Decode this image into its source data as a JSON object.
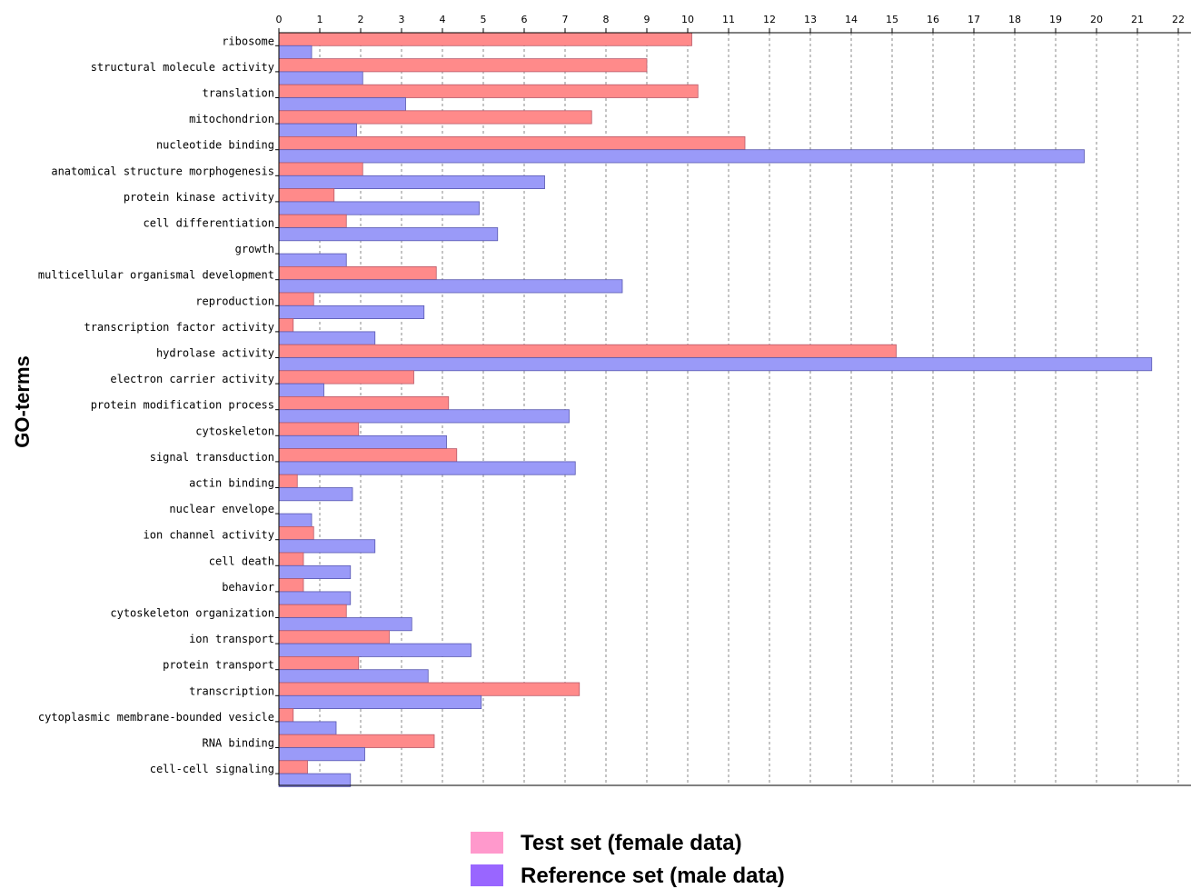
{
  "chart_data": {
    "type": "bar",
    "orientation": "horizontal",
    "ylabel": "GO-terms",
    "xlim": [
      0,
      22
    ],
    "x_ticks": [
      0,
      1,
      2,
      3,
      4,
      5,
      6,
      7,
      8,
      9,
      10,
      11,
      12,
      13,
      14,
      15,
      16,
      17,
      18,
      19,
      20,
      21,
      22
    ],
    "grid": true,
    "legend_position": "bottom",
    "categories": [
      "ribosome",
      "structural molecule activity",
      "translation",
      "mitochondrion",
      "nucleotide binding",
      "anatomical structure morphogenesis",
      "protein kinase activity",
      "cell differentiation",
      "growth",
      "multicellular organismal development",
      "reproduction",
      "transcription factor activity",
      "hydrolase activity",
      "electron carrier activity",
      "protein modification process",
      "cytoskeleton",
      "signal transduction",
      "actin binding",
      "nuclear envelope",
      "ion channel activity",
      "cell death",
      "behavior",
      "cytoskeleton organization",
      "ion transport",
      "protein transport",
      "transcription",
      "cytoplasmic membrane-bounded vesicle",
      "RNA binding",
      "cell-cell signaling"
    ],
    "series": [
      {
        "name": "Test set (female data)",
        "color": "#ff8a8a",
        "values": [
          10.1,
          9.0,
          10.25,
          7.65,
          11.4,
          2.05,
          1.35,
          1.65,
          0.0,
          3.85,
          0.85,
          0.35,
          15.1,
          3.3,
          4.15,
          1.95,
          4.35,
          0.45,
          0.0,
          0.85,
          0.6,
          0.6,
          1.65,
          2.7,
          1.95,
          7.35,
          0.35,
          3.8,
          0.7
        ]
      },
      {
        "name": "Reference set (male data)",
        "color": "#9a9af8",
        "values": [
          0.8,
          2.05,
          3.1,
          1.9,
          19.7,
          6.5,
          4.9,
          5.35,
          1.65,
          8.4,
          3.55,
          2.35,
          21.35,
          1.1,
          7.1,
          4.1,
          7.25,
          1.8,
          0.8,
          2.35,
          1.75,
          1.75,
          3.25,
          4.7,
          3.65,
          4.95,
          1.4,
          2.1,
          1.75
        ]
      }
    ]
  },
  "legend": {
    "items": [
      {
        "label": "Test set (female data)",
        "color": "#ff99cc"
      },
      {
        "label": "Reference set (male data)",
        "color": "#9966ff"
      }
    ]
  }
}
